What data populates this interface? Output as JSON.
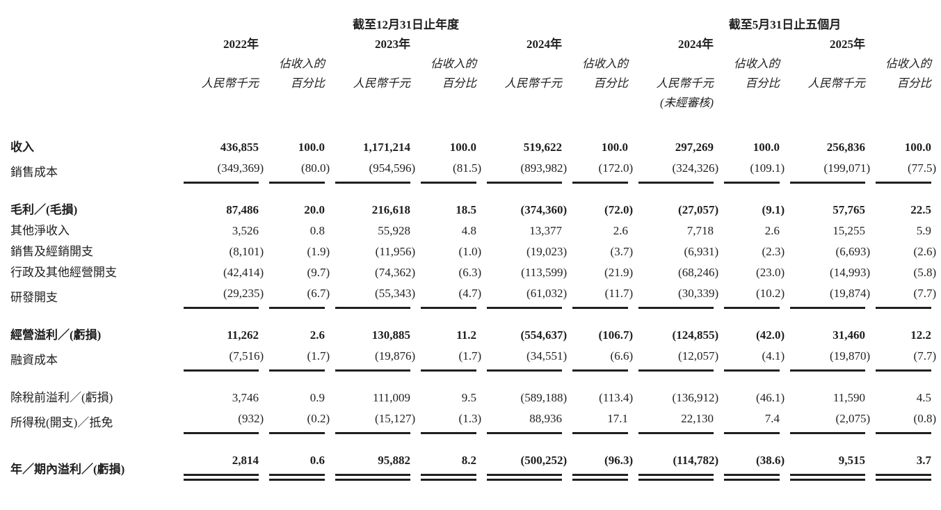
{
  "page": {
    "background_color": "#ffffff",
    "text_color": "#1f1f1f"
  },
  "table": {
    "period_groups": [
      {
        "label": "截至12月31日止年度"
      },
      {
        "label": "截至5月31日止五個月"
      }
    ],
    "columns": [
      {
        "year": "2022年",
        "amount_header": "人民幣千元",
        "pct_header_line1": "佔收入的",
        "pct_header_line2": "百分比",
        "note": ""
      },
      {
        "year": "2023年",
        "amount_header": "人民幣千元",
        "pct_header_line1": "佔收入的",
        "pct_header_line2": "百分比",
        "note": ""
      },
      {
        "year": "2024年",
        "amount_header": "人民幣千元",
        "pct_header_line1": "佔收入的",
        "pct_header_line2": "百分比",
        "note": ""
      },
      {
        "year": "2024年",
        "amount_header": "人民幣千元",
        "pct_header_line1": "佔收入的",
        "pct_header_line2": "百分比",
        "note": "(未經審核)"
      },
      {
        "year": "2025年",
        "amount_header": "人民幣千元",
        "pct_header_line1": "佔收入的",
        "pct_header_line2": "百分比",
        "note": ""
      }
    ],
    "rows": [
      {
        "label": "收入",
        "bold": true,
        "gap_before": false,
        "rule": "none",
        "values": [
          "436,855",
          "100.0",
          "1,171,214",
          "100.0",
          "519,622",
          "100.0",
          "297,269",
          "100.0",
          "256,836",
          "100.0"
        ]
      },
      {
        "label": "銷售成本",
        "bold": false,
        "gap_before": false,
        "rule": "single",
        "values": [
          "(349,369)",
          "(80.0)",
          "(954,596)",
          "(81.5)",
          "(893,982)",
          "(172.0)",
          "(324,326)",
          "(109.1)",
          "(199,071)",
          "(77.5)"
        ]
      },
      {
        "label": "毛利／(毛損)",
        "bold": true,
        "gap_before": true,
        "rule": "none",
        "values": [
          "87,486",
          "20.0",
          "216,618",
          "18.5",
          "(374,360)",
          "(72.0)",
          "(27,057)",
          "(9.1)",
          "57,765",
          "22.5"
        ]
      },
      {
        "label": "其他淨收入",
        "bold": false,
        "gap_before": false,
        "rule": "none",
        "values": [
          "3,526",
          "0.8",
          "55,928",
          "4.8",
          "13,377",
          "2.6",
          "7,718",
          "2.6",
          "15,255",
          "5.9"
        ]
      },
      {
        "label": "銷售及經銷開支",
        "bold": false,
        "gap_before": false,
        "rule": "none",
        "values": [
          "(8,101)",
          "(1.9)",
          "(11,956)",
          "(1.0)",
          "(19,023)",
          "(3.7)",
          "(6,931)",
          "(2.3)",
          "(6,693)",
          "(2.6)"
        ]
      },
      {
        "label": "行政及其他經營開支",
        "bold": false,
        "gap_before": false,
        "rule": "none",
        "values": [
          "(42,414)",
          "(9.7)",
          "(74,362)",
          "(6.3)",
          "(113,599)",
          "(21.9)",
          "(68,246)",
          "(23.0)",
          "(14,993)",
          "(5.8)"
        ]
      },
      {
        "label": "研發開支",
        "bold": false,
        "gap_before": false,
        "rule": "single",
        "values": [
          "(29,235)",
          "(6.7)",
          "(55,343)",
          "(4.7)",
          "(61,032)",
          "(11.7)",
          "(30,339)",
          "(10.2)",
          "(19,874)",
          "(7.7)"
        ]
      },
      {
        "label": "經營溢利／(虧損)",
        "bold": true,
        "gap_before": true,
        "rule": "none",
        "values": [
          "11,262",
          "2.6",
          "130,885",
          "11.2",
          "(554,637)",
          "(106.7)",
          "(124,855)",
          "(42.0)",
          "31,460",
          "12.2"
        ]
      },
      {
        "label": "融資成本",
        "bold": false,
        "gap_before": false,
        "rule": "single",
        "values": [
          "(7,516)",
          "(1.7)",
          "(19,876)",
          "(1.7)",
          "(34,551)",
          "(6.6)",
          "(12,057)",
          "(4.1)",
          "(19,870)",
          "(7.7)"
        ]
      },
      {
        "label": "除稅前溢利／(虧損)",
        "bold": false,
        "gap_before": true,
        "rule": "none",
        "values": [
          "3,746",
          "0.9",
          "111,009",
          "9.5",
          "(589,188)",
          "(113.4)",
          "(136,912)",
          "(46.1)",
          "11,590",
          "4.5"
        ]
      },
      {
        "label": "所得稅(開支)／抵免",
        "bold": false,
        "gap_before": false,
        "rule": "single",
        "values": [
          "(932)",
          "(0.2)",
          "(15,127)",
          "(1.3)",
          "88,936",
          "17.1",
          "22,130",
          "7.4",
          "(2,075)",
          "(0.8)"
        ]
      },
      {
        "label": "年／期內溢利／(虧損)",
        "bold": true,
        "gap_before": true,
        "rule": "double",
        "values": [
          "2,814",
          "0.6",
          "95,882",
          "8.2",
          "(500,252)",
          "(96.3)",
          "(114,782)",
          "(38.6)",
          "9,515",
          "3.7"
        ]
      }
    ]
  }
}
